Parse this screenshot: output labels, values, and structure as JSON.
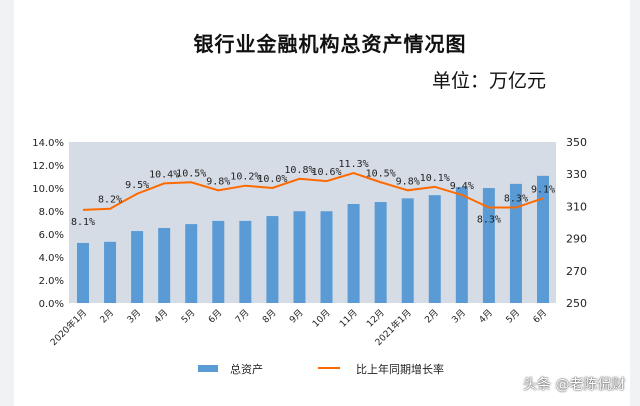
{
  "chart_data": {
    "type": "bar+line",
    "title": "银行业金融机构总资产情况图",
    "unit_label": "单位：万亿元",
    "categories": [
      "2020年1月",
      "2月",
      "3月",
      "4月",
      "5月",
      "6月",
      "7月",
      "8月",
      "9月",
      "10月",
      "11月",
      "12月",
      "2021年1月",
      "2月",
      "3月",
      "4月",
      "5月",
      "6月"
    ],
    "series": [
      {
        "name": "总资产",
        "type": "bar",
        "axis": "right",
        "color": "#5b9bd5",
        "values": [
          287.3,
          288,
          294.7,
          296.6,
          299,
          301,
          301,
          304,
          307,
          307,
          311.5,
          312.7,
          315,
          317,
          322,
          321.4,
          324,
          329
        ]
      },
      {
        "name": "比上年同期增长率",
        "type": "line",
        "axis": "left",
        "color": "#ff6a00",
        "values": [
          8.1,
          8.2,
          9.5,
          10.4,
          10.5,
          9.8,
          10.2,
          10.0,
          10.8,
          10.6,
          11.3,
          10.5,
          9.8,
          10.1,
          9.4,
          8.3,
          8.3,
          9.1
        ],
        "labels": [
          "8.1%",
          "8.2%",
          "9.5%",
          "10.4%",
          "10.5%",
          "9.8%",
          "10.2%",
          "10.0%",
          "10.8%",
          "10.6%",
          "11.3%",
          "10.5%",
          "9.8%",
          "10.1%",
          "9.4%",
          "8.3%",
          "8.3%",
          "9.1%"
        ]
      }
    ],
    "left_axis": {
      "ylim": [
        0,
        14
      ],
      "ticks": [
        "0.0%",
        "2.0%",
        "4.0%",
        "6.0%",
        "8.0%",
        "10.0%",
        "12.0%",
        "14.0%"
      ]
    },
    "right_axis": {
      "ylim": [
        250,
        350
      ],
      "ticks": [
        "250",
        "270",
        "290",
        "310",
        "330",
        "350"
      ]
    },
    "plot_background": "#d6dce5",
    "grid": false,
    "legend_position": "bottom"
  },
  "watermark": "头条 @老陈侃财"
}
